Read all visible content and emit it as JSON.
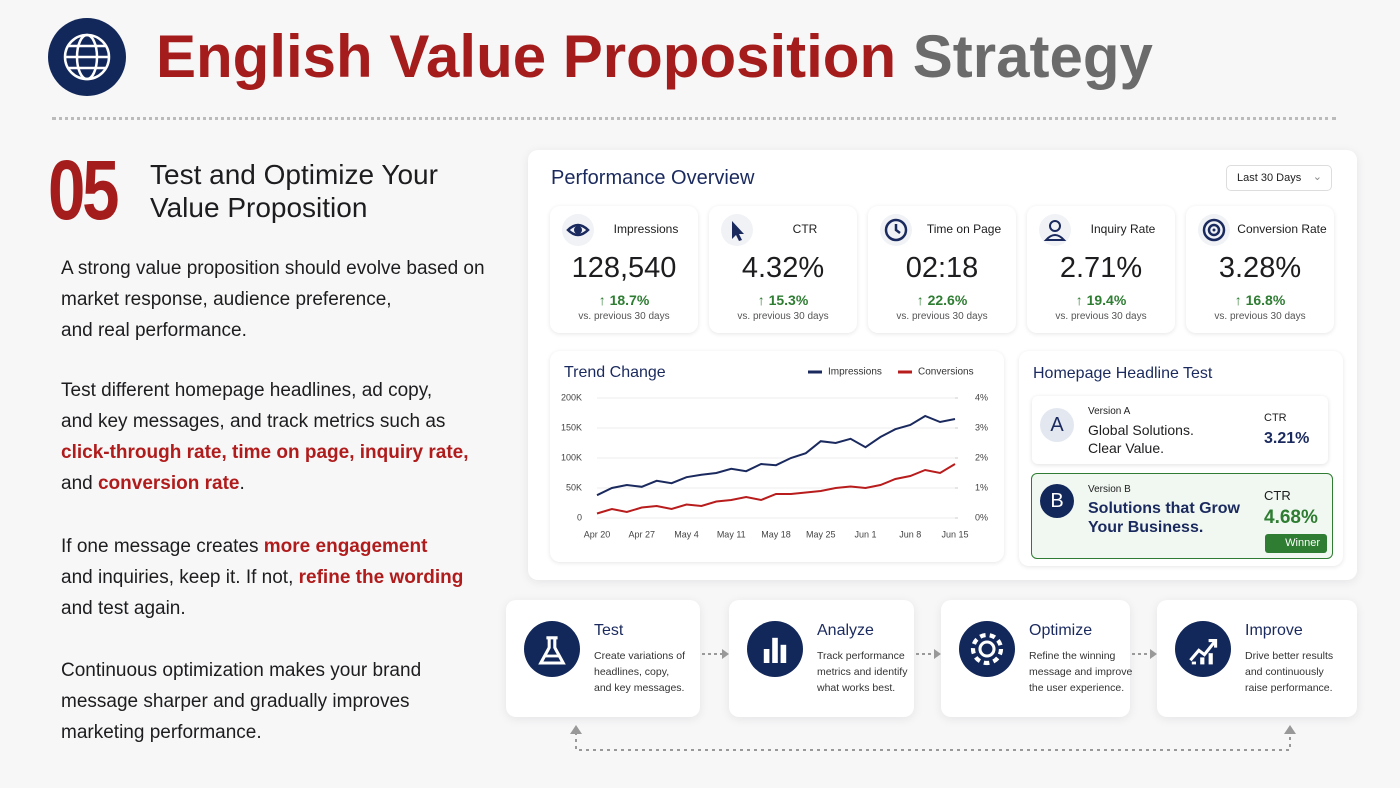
{
  "header": {
    "title_main": "English Value Proposition",
    "title_accent": "Strategy"
  },
  "section": {
    "number": "05",
    "title_lines": [
      "Test and Optimize Your",
      "Value Proposition"
    ]
  },
  "paragraphs": [
    [
      [
        {
          "text": "A strong value proposition should evolve based on",
          "emphasis": false
        }
      ],
      [
        {
          "text": "market response, audience preference,",
          "emphasis": false
        }
      ],
      [
        {
          "text": "and real performance.",
          "emphasis": false
        }
      ]
    ],
    [
      [
        {
          "text": "Test different homepage headlines, ad copy,",
          "emphasis": false
        }
      ],
      [
        {
          "text": "and key messages, and track metrics such as",
          "emphasis": false
        }
      ],
      [
        {
          "text": "click-through rate, time on page, inquiry rate,",
          "emphasis": true
        }
      ],
      [
        {
          "text": "and ",
          "emphasis": false
        },
        {
          "text": "conversion rate",
          "emphasis": true
        },
        {
          "text": ".",
          "emphasis": false
        }
      ]
    ],
    [
      [
        {
          "text": "If one message creates ",
          "emphasis": false
        },
        {
          "text": "more engagement",
          "emphasis": true
        }
      ],
      [
        {
          "text": "and inquiries, keep it. If not, ",
          "emphasis": false
        },
        {
          "text": "refine the wording",
          "emphasis": true
        }
      ],
      [
        {
          "text": "and test again.",
          "emphasis": false
        }
      ]
    ],
    [
      [
        {
          "text": "Continuous optimization makes your brand",
          "emphasis": false
        }
      ],
      [
        {
          "text": "message sharper and gradually improves",
          "emphasis": false
        }
      ],
      [
        {
          "text": "marketing performance.",
          "emphasis": false
        }
      ]
    ]
  ],
  "dashboard": {
    "title": "Performance Overview",
    "range": "Last 30 Days",
    "kpis": [
      {
        "label": "Impressions",
        "value": "128,540",
        "change": "18.7%",
        "note": "vs. previous 30 days"
      },
      {
        "label": "CTR",
        "value": "4.32%",
        "change": "15.3%",
        "note": "vs. previous 30 days"
      },
      {
        "label": "Time on Page",
        "value": "02:18",
        "change": "22.6%",
        "note": "vs. previous 30 days"
      },
      {
        "label": "Inquiry Rate",
        "value": "2.71%",
        "change": "19.4%",
        "note": "vs. previous 30 days"
      },
      {
        "label": "Conversion Rate",
        "value": "3.28%",
        "change": "16.8%",
        "note": "vs. previous 30 days"
      }
    ]
  },
  "chart_data": {
    "type": "line",
    "title": "Trend Change",
    "categories": [
      "Apr 20",
      null,
      null,
      "Apr 27",
      null,
      null,
      "May 4",
      null,
      null,
      "May 11",
      null,
      null,
      "May 18",
      null,
      null,
      "May 25",
      null,
      null,
      "Jun 1",
      null,
      null,
      "Jun 8",
      null,
      null,
      "Jun 15"
    ],
    "series": [
      {
        "name": "Impressions",
        "color": "#1b2a5e",
        "values": [
          38000,
          50000,
          55000,
          52000,
          62000,
          58000,
          68000,
          72000,
          75000,
          82000,
          78000,
          90000,
          88000,
          100000,
          108000,
          128000,
          125000,
          132000,
          118000,
          135000,
          148000,
          155000,
          170000,
          160000,
          165000
        ]
      },
      {
        "name": "Conversions",
        "color": "#b81c1c",
        "axis": "y2",
        "values": [
          0.15,
          0.3,
          0.2,
          0.35,
          0.4,
          0.3,
          0.45,
          0.4,
          0.55,
          0.6,
          0.7,
          0.6,
          0.8,
          0.8,
          0.85,
          0.9,
          1.0,
          1.05,
          1.0,
          1.1,
          1.3,
          1.4,
          1.6,
          1.5,
          1.8
        ]
      }
    ],
    "ylim": [
      0,
      200000
    ],
    "yticks": [
      0,
      {
        "value": 50000,
        "label": "50K"
      },
      {
        "value": 100000,
        "label": "100K"
      },
      {
        "value": 150000,
        "label": "150K"
      },
      {
        "value": 200000,
        "label": "200K"
      }
    ],
    "y2lim": [
      0,
      4
    ],
    "y2ticks": [
      {
        "value": 0,
        "label": "0%"
      },
      {
        "value": 1,
        "label": "1%"
      },
      {
        "value": 2,
        "label": "2%"
      },
      {
        "value": 3,
        "label": "3%"
      },
      {
        "value": 4,
        "label": "4%"
      }
    ],
    "legend": "top-right"
  },
  "headline_test": {
    "title": "Homepage Headline Test",
    "versions": [
      {
        "badge": "A",
        "label": "Version A",
        "headline_lines": [
          "Global Solutions.",
          "Clear Value."
        ],
        "metric_label": "CTR",
        "metric_value": "3.21%"
      },
      {
        "badge": "B",
        "label": "Version B",
        "headline_lines": [
          "Solutions that Grow",
          "Your Business."
        ],
        "metric_label": "CTR",
        "metric_value": "4.68%",
        "winner": "Winner"
      }
    ]
  },
  "process": [
    {
      "title": "Test",
      "lines": [
        "Create variations of",
        "headlines, copy,",
        "and key messages."
      ]
    },
    {
      "title": "Analyze",
      "lines": [
        "Track performance",
        "metrics and identify",
        "what works best."
      ]
    },
    {
      "title": "Optimize",
      "lines": [
        "Refine the winning",
        "message and improve",
        "the user experience."
      ]
    },
    {
      "title": "Improve",
      "lines": [
        "Drive better results",
        "and continuously",
        "raise performance."
      ]
    }
  ]
}
